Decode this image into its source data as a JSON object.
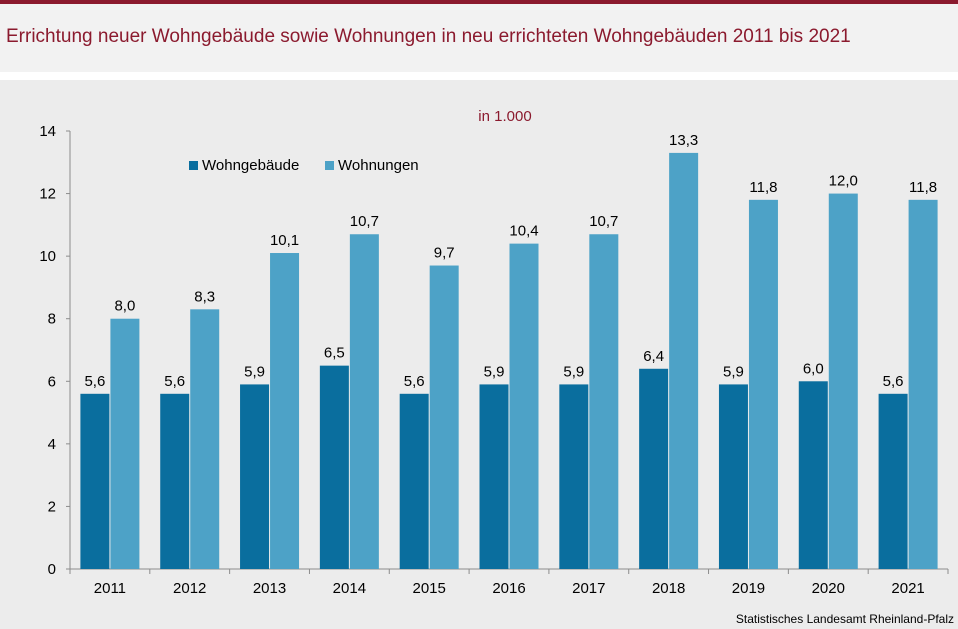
{
  "title": "Errichtung neuer Wohngebäude sowie Wohnungen in neu errichteten Wohngebäuden 2011 bis 2021",
  "source": "Statistisches Landesamt  Rheinland-Pfalz",
  "colors": {
    "accent": "#8b1a2e",
    "series1": "#0a6e9e",
    "series2": "#4da2c7"
  },
  "chart_data": {
    "type": "bar",
    "subtitle": "in 1.000",
    "categories": [
      "2011",
      "2012",
      "2013",
      "2014",
      "2015",
      "2016",
      "2017",
      "2018",
      "2019",
      "2020",
      "2021"
    ],
    "series": [
      {
        "name": "Wohngebäude",
        "values": [
          5.6,
          5.6,
          5.9,
          6.5,
          5.6,
          5.9,
          5.9,
          6.4,
          5.9,
          6.0,
          5.6
        ],
        "labels": [
          "5,6",
          "5,6",
          "5,9",
          "6,5",
          "5,6",
          "5,9",
          "5,9",
          "6,4",
          "5,9",
          "6,0",
          "5,6"
        ]
      },
      {
        "name": "Wohnungen",
        "values": [
          8.0,
          8.3,
          10.1,
          10.7,
          9.7,
          10.4,
          10.7,
          13.3,
          11.8,
          12.0,
          11.8
        ],
        "labels": [
          "8,0",
          "8,3",
          "10,1",
          "10,7",
          "9,7",
          "10,4",
          "10,7",
          "13,3",
          "11,8",
          "12,0",
          "11,8"
        ]
      }
    ],
    "yticks": [
      "0",
      "2",
      "4",
      "6",
      "8",
      "10",
      "12",
      "14"
    ],
    "ylim": [
      0,
      14
    ],
    "grid": false,
    "legend": "top-left"
  }
}
